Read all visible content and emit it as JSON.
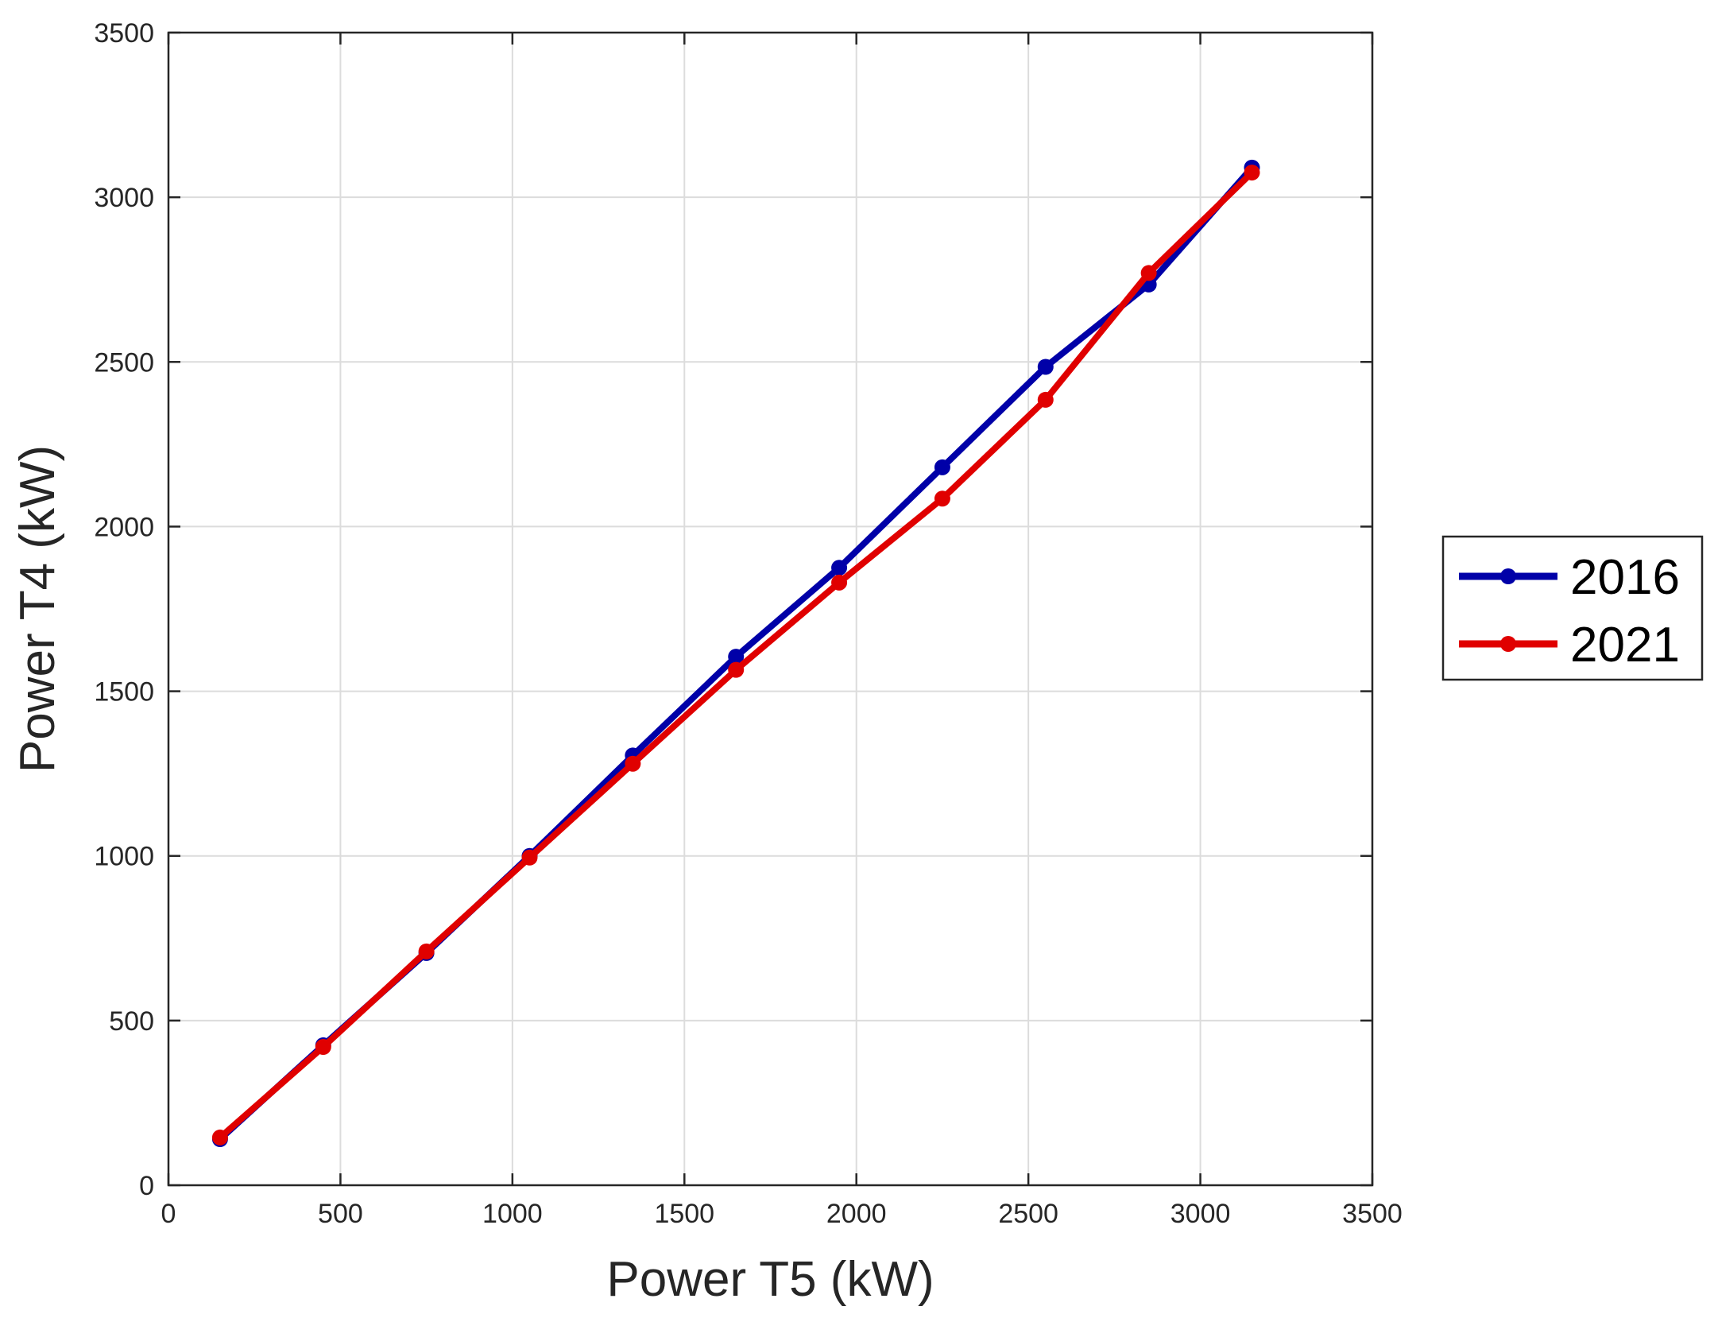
{
  "chart_data": {
    "type": "line",
    "xlabel": "Power T5 (kW)",
    "ylabel": "Power T4 (kW)",
    "xlim": [
      0,
      3500
    ],
    "ylim": [
      0,
      3500
    ],
    "xticks": [
      0,
      500,
      1000,
      1500,
      2000,
      2500,
      3000,
      3500
    ],
    "yticks": [
      0,
      500,
      1000,
      1500,
      2000,
      2500,
      3000,
      3500
    ],
    "grid": true,
    "legend_position": "outside right",
    "series": [
      {
        "name": "2016",
        "color": "#0000a8",
        "marker": "circle",
        "x": [
          150,
          450,
          750,
          1050,
          1350,
          1650,
          1950,
          2250,
          2550,
          2850,
          3150
        ],
        "y": [
          140,
          425,
          705,
          1000,
          1305,
          1605,
          1875,
          2180,
          2485,
          2735,
          3090
        ]
      },
      {
        "name": "2021",
        "color": "#e00000",
        "marker": "circle",
        "x": [
          150,
          450,
          750,
          1050,
          1350,
          1650,
          1950,
          2250,
          2550,
          2850,
          3150
        ],
        "y": [
          145,
          420,
          710,
          995,
          1280,
          1565,
          1830,
          2085,
          2385,
          2770,
          3075
        ]
      }
    ]
  }
}
